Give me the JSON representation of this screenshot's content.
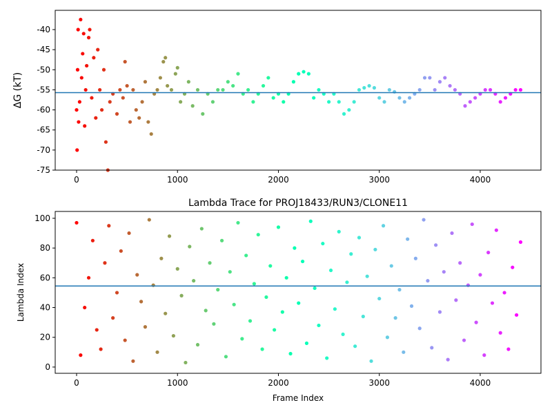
{
  "chart_data": [
    {
      "type": "scatter",
      "ylabel": "ΔG (kT)",
      "colormap": "rainbow_r",
      "x": [
        0,
        5,
        10,
        15,
        20,
        30,
        40,
        50,
        60,
        70,
        80,
        90,
        100,
        120,
        130,
        150,
        170,
        190,
        210,
        230,
        250,
        270,
        290,
        310,
        330,
        360,
        400,
        430,
        460,
        480,
        500,
        530,
        560,
        590,
        620,
        650,
        680,
        710,
        740,
        770,
        800,
        830,
        860,
        880,
        900,
        940,
        980,
        1000,
        1030,
        1070,
        1110,
        1150,
        1200,
        1250,
        1300,
        1350,
        1400,
        1450,
        1500,
        1550,
        1600,
        1650,
        1700,
        1750,
        1800,
        1850,
        1900,
        1950,
        2000,
        2050,
        2100,
        2150,
        2200,
        2250,
        2300,
        2350,
        2400,
        2450,
        2500,
        2550,
        2600,
        2650,
        2700,
        2750,
        2800,
        2850,
        2900,
        2950,
        3000,
        3050,
        3100,
        3150,
        3200,
        3250,
        3300,
        3350,
        3400,
        3450,
        3500,
        3550,
        3600,
        3650,
        3700,
        3750,
        3800,
        3850,
        3900,
        3950,
        4000,
        4050,
        4100,
        4150,
        4200,
        4250,
        4300,
        4350,
        4400
      ],
      "values": [
        -60,
        -70,
        -50,
        -40,
        -63,
        -58,
        -37.5,
        -52,
        -46,
        -41,
        -64,
        -55,
        -49,
        -42,
        -40,
        -57,
        -47,
        -62,
        -45,
        -55,
        -60,
        -50,
        -68,
        -75,
        -58,
        -56,
        -61,
        -55,
        -57,
        -48,
        -54,
        -63,
        -55,
        -60,
        -62,
        -58,
        -53,
        -63,
        -66,
        -56,
        -55,
        -52,
        -48,
        -47,
        -54,
        -55,
        -51,
        -49.5,
        -58,
        -56,
        -53,
        -59,
        -55,
        -61,
        -56,
        -58,
        -55,
        -55,
        -53,
        -54,
        -51,
        -56,
        -55,
        -58,
        -56,
        -54,
        -52,
        -57,
        -56,
        -58,
        -56,
        -53,
        -51,
        -50.5,
        -51,
        -57,
        -55,
        -56,
        -58,
        -56,
        -58,
        -61,
        -60,
        -58,
        -55,
        -54.5,
        -54,
        -54.5,
        -57,
        -58,
        -55,
        -55.5,
        -57,
        -58,
        -57,
        -56,
        -55,
        -52,
        -52,
        -55,
        -53,
        -52,
        -54,
        -55,
        -56,
        -59,
        -58,
        -57,
        -56,
        -55,
        -55,
        -56,
        -58,
        -57,
        -56,
        -55,
        -55
      ],
      "hline": {
        "value": -55.7,
        "color": "#1f77b4"
      },
      "xlim": [
        -212,
        4602
      ],
      "xticks": [
        0,
        1000,
        2000,
        3000,
        4000
      ],
      "ylim": [
        -75,
        -35.2
      ],
      "yticks": [
        -75,
        -70,
        -65,
        -60,
        -55,
        -50,
        -45,
        -40
      ]
    },
    {
      "type": "scatter",
      "title": "Lambda Trace for PROJ18433/RUN3/CLONE11",
      "xlabel": "Frame Index",
      "ylabel": "Lambda Index",
      "colormap": "rainbow_r",
      "x": [
        0,
        40,
        80,
        120,
        160,
        200,
        240,
        280,
        320,
        360,
        400,
        440,
        480,
        520,
        560,
        600,
        640,
        680,
        720,
        760,
        800,
        840,
        880,
        920,
        960,
        1000,
        1040,
        1080,
        1120,
        1160,
        1200,
        1240,
        1280,
        1320,
        1360,
        1400,
        1440,
        1480,
        1520,
        1560,
        1600,
        1640,
        1680,
        1720,
        1760,
        1800,
        1840,
        1880,
        1920,
        1960,
        2000,
        2040,
        2080,
        2120,
        2160,
        2200,
        2240,
        2280,
        2320,
        2360,
        2400,
        2440,
        2480,
        2520,
        2560,
        2600,
        2640,
        2680,
        2720,
        2760,
        2800,
        2840,
        2880,
        2920,
        2960,
        3000,
        3040,
        3080,
        3120,
        3160,
        3200,
        3240,
        3280,
        3320,
        3360,
        3400,
        3440,
        3480,
        3520,
        3560,
        3600,
        3640,
        3680,
        3720,
        3760,
        3800,
        3840,
        3880,
        3920,
        3960,
        4000,
        4040,
        4080,
        4120,
        4160,
        4200,
        4240,
        4280,
        4320,
        4360,
        4400
      ],
      "values": [
        97,
        8,
        40,
        60,
        85,
        25,
        12,
        70,
        95,
        33,
        50,
        78,
        18,
        90,
        4,
        62,
        44,
        27,
        99,
        55,
        10,
        73,
        36,
        88,
        21,
        66,
        48,
        3,
        81,
        58,
        15,
        93,
        38,
        70,
        29,
        52,
        85,
        7,
        64,
        42,
        97,
        19,
        75,
        31,
        56,
        89,
        12,
        47,
        68,
        25,
        94,
        37,
        60,
        9,
        80,
        43,
        71,
        16,
        98,
        53,
        28,
        83,
        6,
        65,
        39,
        91,
        22,
        57,
        76,
        14,
        87,
        34,
        61,
        4,
        79,
        46,
        95,
        20,
        68,
        33,
        52,
        10,
        86,
        41,
        73,
        26,
        99,
        58,
        13,
        82,
        37,
        64,
        5,
        90,
        45,
        70,
        18,
        55,
        96,
        30,
        62,
        8,
        77,
        43,
        92,
        23,
        50,
        12,
        67,
        35,
        84
      ],
      "hline": {
        "value": 54.5,
        "color": "#1f77b4"
      },
      "xlim": [
        -212,
        4602
      ],
      "xticks": [
        0,
        1000,
        2000,
        3000,
        4000
      ],
      "ylim": [
        -4.2,
        104.6
      ],
      "yticks": [
        0,
        20,
        40,
        60,
        80,
        100
      ]
    }
  ]
}
